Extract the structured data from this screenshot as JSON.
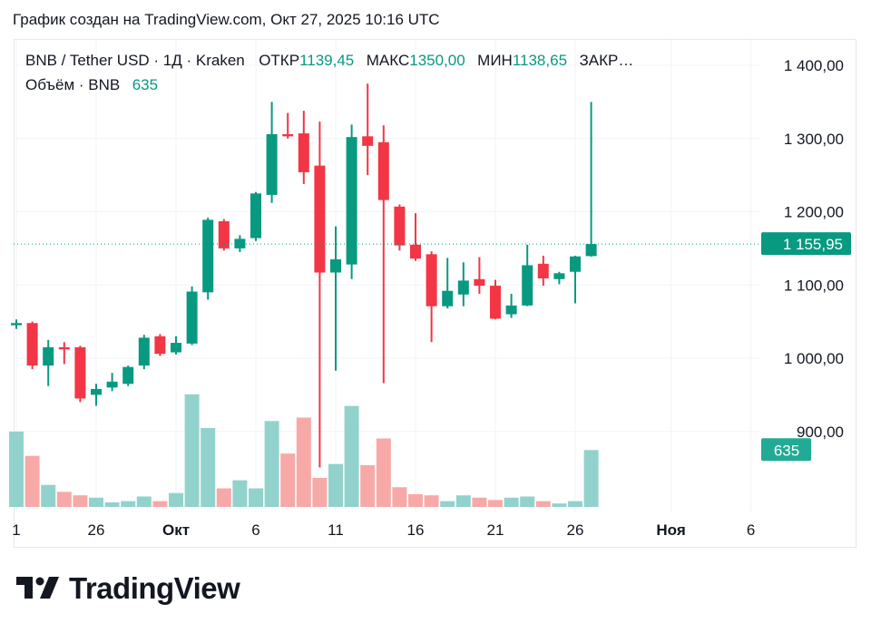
{
  "caption": "График создан на TradingView.com, Окт 27, 2025 10:16 UTC",
  "legend": {
    "symbol": "BNB / Tether USD · 1Д · Kraken",
    "open_label": "ОТКР",
    "open_value": "1139,45",
    "high_label": "МАКС",
    "high_value": "1350,00",
    "low_label": "МИН",
    "low_value": "1138,65",
    "close_label": "ЗАКР…",
    "volume_label": "Объём · BNB",
    "volume_value": "635"
  },
  "colors": {
    "up": "#089981",
    "down": "#f23645",
    "vol_up": "#92d2cc",
    "vol_down": "#f7a9a7"
  },
  "brand": "TradingView",
  "chart_data": {
    "type": "candlestick",
    "title": "BNB / Tether USD · 1Д · Kraken",
    "y_range": [
      820,
      1420
    ],
    "y_ticks": [
      900,
      1000,
      1100,
      1200,
      1300,
      1400
    ],
    "y_tick_labels": [
      "900,00",
      "1 000,00",
      "1 100,00",
      "1 200,00",
      "1 300,00",
      "1 400,00"
    ],
    "x_tick_labels": [
      {
        "label": "1",
        "day": 0,
        "bold": false
      },
      {
        "label": "26",
        "day": 5,
        "bold": false
      },
      {
        "label": "Окт",
        "day": 10,
        "bold": true
      },
      {
        "label": "6",
        "day": 15,
        "bold": false
      },
      {
        "label": "11",
        "day": 20,
        "bold": false
      },
      {
        "label": "16",
        "day": 25,
        "bold": false
      },
      {
        "label": "21",
        "day": 30,
        "bold": false
      },
      {
        "label": "26",
        "day": 35,
        "bold": false
      },
      {
        "label": "Ноя",
        "day": 41,
        "bold": true
      },
      {
        "label": "6",
        "day": 46,
        "bold": false
      }
    ],
    "last_price": 1155.95,
    "last_price_label": "1 155,95",
    "last_volume_label": "635",
    "candles": [
      {
        "o": 1045,
        "h": 1053,
        "l": 1040,
        "c": 1048
      },
      {
        "o": 1048,
        "h": 1050,
        "l": 985,
        "c": 990
      },
      {
        "o": 990,
        "h": 1025,
        "l": 962,
        "c": 1015
      },
      {
        "o": 1015,
        "h": 1022,
        "l": 992,
        "c": 1012
      },
      {
        "o": 1015,
        "h": 1017,
        "l": 940,
        "c": 945
      },
      {
        "o": 950,
        "h": 965,
        "l": 935,
        "c": 958
      },
      {
        "o": 960,
        "h": 980,
        "l": 955,
        "c": 968
      },
      {
        "o": 965,
        "h": 990,
        "l": 962,
        "c": 988
      },
      {
        "o": 990,
        "h": 1032,
        "l": 985,
        "c": 1028
      },
      {
        "o": 1030,
        "h": 1033,
        "l": 1003,
        "c": 1006
      },
      {
        "o": 1008,
        "h": 1030,
        "l": 1005,
        "c": 1021
      },
      {
        "o": 1020,
        "h": 1098,
        "l": 1018,
        "c": 1091
      },
      {
        "o": 1090,
        "h": 1192,
        "l": 1080,
        "c": 1189
      },
      {
        "o": 1187,
        "h": 1190,
        "l": 1147,
        "c": 1150
      },
      {
        "o": 1150,
        "h": 1168,
        "l": 1145,
        "c": 1163
      },
      {
        "o": 1164,
        "h": 1227,
        "l": 1160,
        "c": 1225
      },
      {
        "o": 1223,
        "h": 1350,
        "l": 1212,
        "c": 1306
      },
      {
        "o": 1306,
        "h": 1335,
        "l": 1300,
        "c": 1303
      },
      {
        "o": 1307,
        "h": 1338,
        "l": 1238,
        "c": 1254
      },
      {
        "o": 1263,
        "h": 1323,
        "l": 851,
        "c": 1117
      },
      {
        "o": 1117,
        "h": 1180,
        "l": 983,
        "c": 1135
      },
      {
        "o": 1128,
        "h": 1319,
        "l": 1108,
        "c": 1302
      },
      {
        "o": 1303,
        "h": 1375,
        "l": 1250,
        "c": 1290
      },
      {
        "o": 1295,
        "h": 1318,
        "l": 966,
        "c": 1216
      },
      {
        "o": 1207,
        "h": 1210,
        "l": 1147,
        "c": 1154
      },
      {
        "o": 1155,
        "h": 1198,
        "l": 1133,
        "c": 1136
      },
      {
        "o": 1142,
        "h": 1146,
        "l": 1022,
        "c": 1071
      },
      {
        "o": 1071,
        "h": 1137,
        "l": 1068,
        "c": 1092
      },
      {
        "o": 1087,
        "h": 1131,
        "l": 1071,
        "c": 1106
      },
      {
        "o": 1108,
        "h": 1138,
        "l": 1088,
        "c": 1099
      },
      {
        "o": 1099,
        "h": 1107,
        "l": 1053,
        "c": 1054
      },
      {
        "o": 1060,
        "h": 1088,
        "l": 1055,
        "c": 1072
      },
      {
        "o": 1072,
        "h": 1155,
        "l": 1071,
        "c": 1127
      },
      {
        "o": 1129,
        "h": 1140,
        "l": 1099,
        "c": 1109
      },
      {
        "o": 1108,
        "h": 1118,
        "l": 1101,
        "c": 1116
      },
      {
        "o": 1118,
        "h": 1140,
        "l": 1075,
        "c": 1139
      },
      {
        "o": 1139.45,
        "h": 1350,
        "l": 1138.65,
        "c": 1155.95
      }
    ],
    "volume": {
      "unit": "BNB",
      "relative_heights": [
        0.65,
        0.44,
        0.19,
        0.13,
        0.1,
        0.08,
        0.04,
        0.05,
        0.09,
        0.05,
        0.12,
        0.97,
        0.68,
        0.16,
        0.23,
        0.16,
        0.74,
        0.46,
        0.77,
        0.25,
        0.37,
        0.87,
        0.36,
        0.59,
        0.17,
        0.11,
        0.1,
        0.05,
        0.1,
        0.08,
        0.06,
        0.08,
        0.09,
        0.05,
        0.03,
        0.05,
        0.49
      ]
    }
  }
}
